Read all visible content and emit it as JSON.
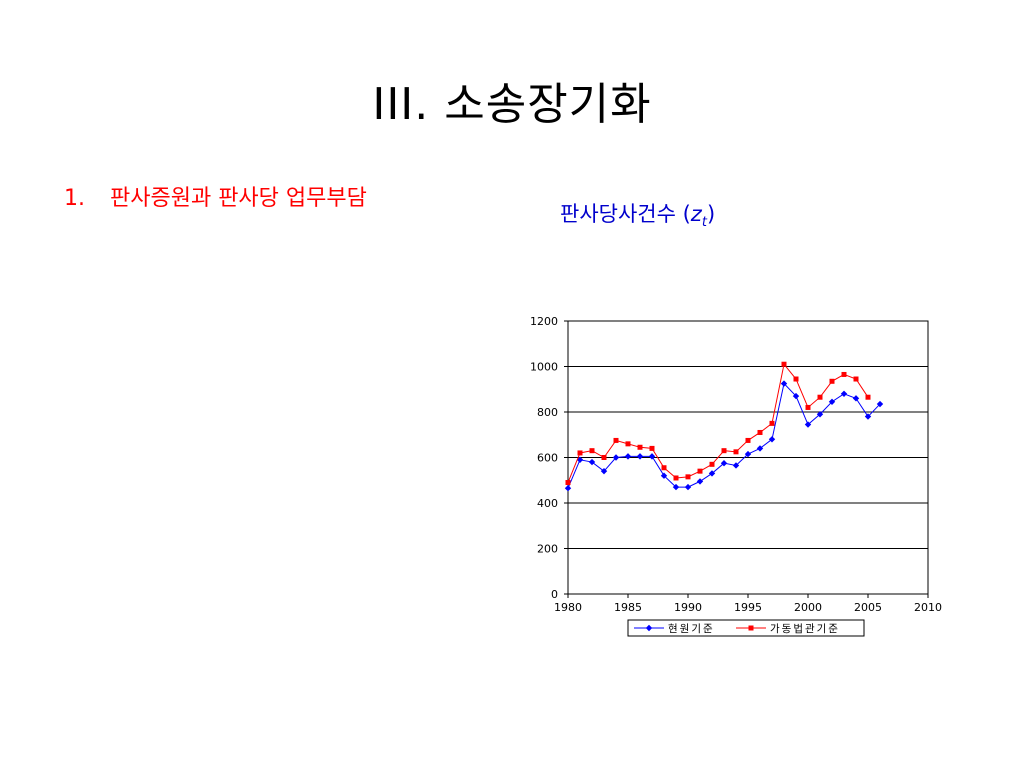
{
  "slide": {
    "title": "III. 소송장기화",
    "bullet_number": "1.",
    "bullet_text": "판사증원과 판사당 업무부담",
    "chart_caption_main": "판사당사건수 (",
    "chart_caption_var": "z",
    "chart_caption_sub": "t",
    "chart_caption_close": ")"
  },
  "chart_data": {
    "type": "line",
    "title": "판사당사건수 (zt)",
    "xlabel": "",
    "ylabel": "",
    "xlim": [
      1980,
      2010
    ],
    "ylim": [
      0,
      1200
    ],
    "x_ticks": [
      1980,
      1985,
      1990,
      1995,
      2000,
      2005,
      2010
    ],
    "y_ticks": [
      0,
      200,
      400,
      600,
      800,
      1000,
      1200
    ],
    "grid": "horizontal",
    "legend_position": "bottom",
    "x": [
      1980,
      1981,
      1982,
      1983,
      1984,
      1985,
      1986,
      1987,
      1988,
      1989,
      1990,
      1991,
      1992,
      1993,
      1994,
      1995,
      1996,
      1997,
      1998,
      1999,
      2000,
      2001,
      2002,
      2003,
      2004,
      2005,
      2006
    ],
    "series": [
      {
        "name": "현원기준",
        "color": "#0000ff",
        "marker": "diamond",
        "values": [
          465,
          590,
          580,
          540,
          600,
          605,
          605,
          605,
          520,
          470,
          470,
          495,
          530,
          575,
          565,
          615,
          640,
          680,
          925,
          870,
          745,
          790,
          845,
          880,
          860,
          780,
          835
        ]
      },
      {
        "name": "가동법관기준",
        "color": "#ff0000",
        "marker": "square",
        "values": [
          490,
          620,
          630,
          600,
          675,
          660,
          645,
          640,
          555,
          510,
          515,
          540,
          570,
          630,
          625,
          675,
          710,
          750,
          1010,
          945,
          820,
          865,
          935,
          965,
          945,
          865,
          null
        ]
      }
    ]
  }
}
